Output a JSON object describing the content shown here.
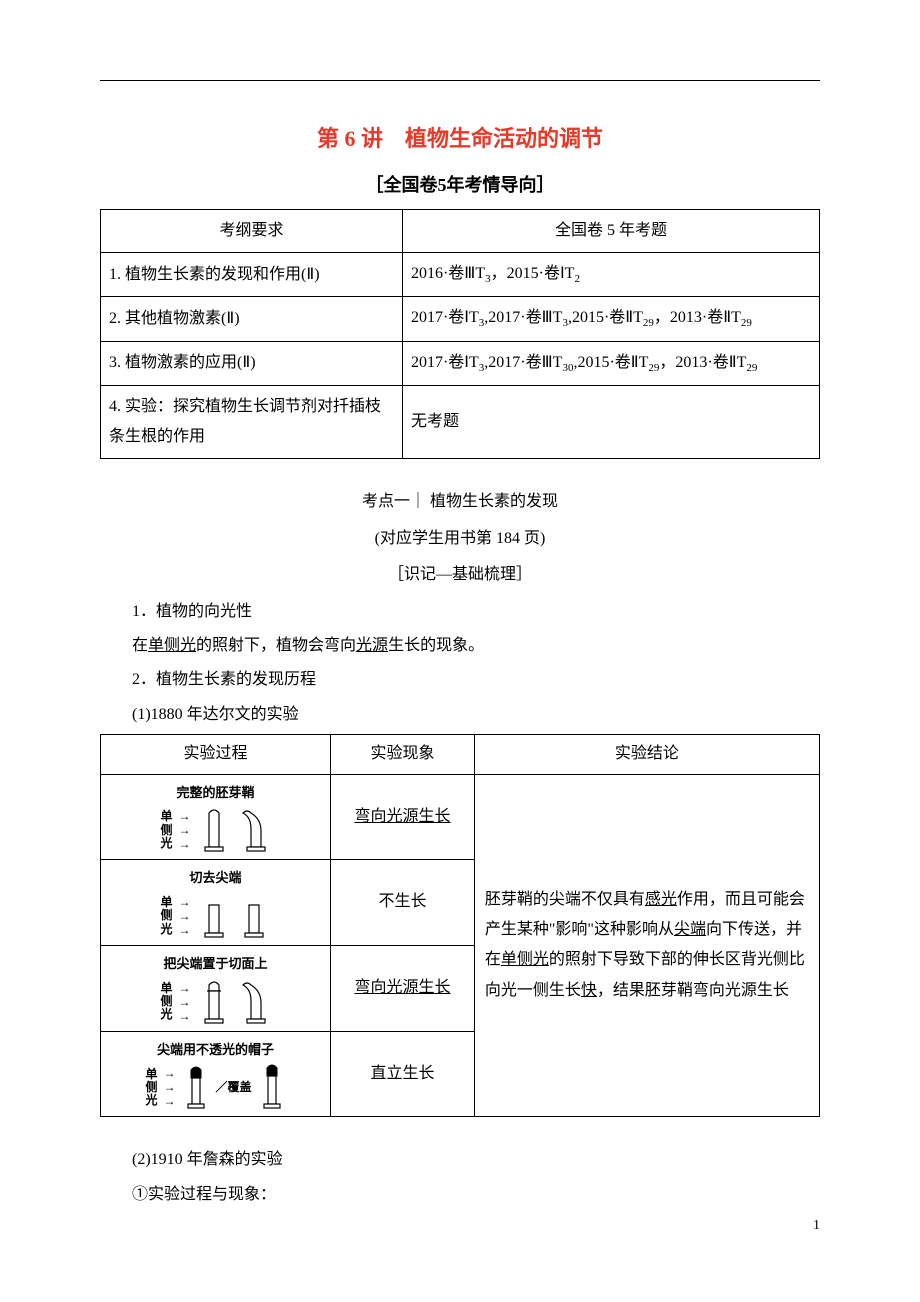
{
  "title": "第 6 讲　植物生命活动的调节",
  "subtitle": "［全国卷5年考情导向］",
  "outline_table": {
    "headers": [
      "考纲要求",
      "全国卷 5 年考题"
    ],
    "rows": [
      {
        "req": "1. 植物生长素的发现和作用(Ⅱ)",
        "items": "2016·卷ⅢT<sub>3</sub>，2015·卷ⅠT<sub>2</sub>"
      },
      {
        "req": "2. 其他植物激素(Ⅱ)",
        "items": "2017·卷ⅠT<sub>3</sub>,2017·卷ⅢT<sub>3</sub>,2015·卷ⅡT<sub>29</sub>，2013·卷ⅡT<sub>29</sub>"
      },
      {
        "req": "3. 植物激素的应用(Ⅱ)",
        "items": "2017·卷ⅠT<sub>3</sub>,2017·卷ⅢT<sub>30</sub>,2015·卷ⅡT<sub>29</sub>，2013·卷ⅡT<sub>29</sub>"
      },
      {
        "req": "4. 实验：探究植物生长调节剂对扦插枝条生根的作用",
        "items": "无考题"
      }
    ]
  },
  "point_heading": "考点一｜ 植物生长素的发现",
  "page_ref": "(对应学生用书第 184 页)",
  "memo_heading": "［识记—基础梳理］",
  "h1": "1．植物的向光性",
  "p1_pre": "在",
  "p1_u1": "单侧光",
  "p1_mid": "的照射下，植物会弯向",
  "p1_u2": "光源",
  "p1_post": "生长的现象。",
  "h2": "2．植物生长素的发现历程",
  "p2": "(1)1880 年达尔文的实验",
  "exp_table": {
    "headers": [
      "实验过程",
      "实验现象",
      "实验结论"
    ],
    "captions": [
      "完整的胚芽鞘",
      "切去尖端",
      "把尖端置于切面上",
      "尖端用不透光的帽子"
    ],
    "light_label": "单侧光",
    "cover_label": "覆盖",
    "phenomena_u": [
      "弯向光源生长",
      "弯向光源生长"
    ],
    "phenomena_plain": [
      "不生长",
      "直立生长"
    ],
    "conclusion": {
      "t1": "胚芽鞘的尖端不仅具有",
      "u1": "感光",
      "t2": "作用，而且可能会产生某种\"影响\"这种影响从",
      "u2": "尖端",
      "t3": "向下传送，并在",
      "u3": "单侧光",
      "t4": "的照射下导致下部的伸长区背光侧比向光一侧生长",
      "u4": "快",
      "t5": "，结果胚芽鞘弯向光源生长"
    }
  },
  "p3": "(2)1910 年詹森的实验",
  "p4": "①实验过程与现象：",
  "page_number": "1",
  "colors": {
    "title": "#e83828",
    "text": "#000000",
    "border": "#000000",
    "bg": "#ffffff"
  }
}
